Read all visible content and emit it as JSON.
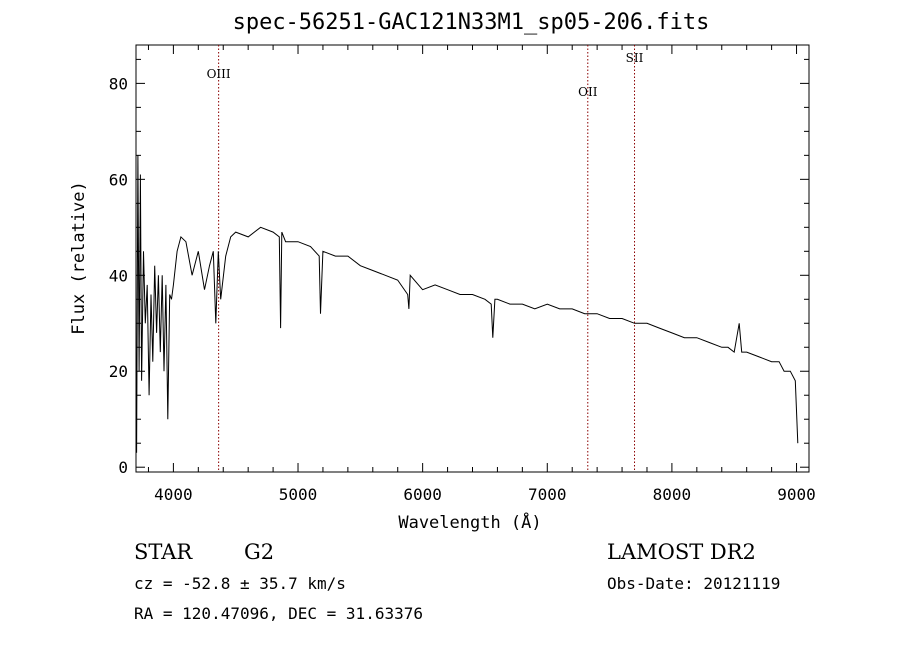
{
  "chart_data": {
    "type": "line",
    "title": "spec-56251-GAC121N33M1_sp05-206.fits",
    "xlabel": "Wavelength (Å)",
    "ylabel": "Flux (relative)",
    "xlim": [
      3700,
      9100
    ],
    "ylim": [
      -1,
      88
    ],
    "xticks": [
      4000,
      5000,
      6000,
      7000,
      8000,
      9000
    ],
    "yticks": [
      0,
      20,
      40,
      60,
      80
    ],
    "grid": false,
    "series": [
      {
        "x": [
          3705,
          3715,
          3725,
          3735,
          3745,
          3760,
          3775,
          3790,
          3805,
          3820,
          3835,
          3850,
          3865,
          3880,
          3895,
          3910,
          3925,
          3940,
          3955,
          3970,
          3985,
          4000,
          4030,
          4060,
          4100,
          4150,
          4200,
          4250,
          4290,
          4320,
          4340,
          4360,
          4380,
          4420,
          4460,
          4500,
          4600,
          4700,
          4800,
          4850,
          4860,
          4870,
          4900,
          5000,
          5100,
          5170,
          5180,
          5200,
          5300,
          5400,
          5500,
          5600,
          5700,
          5800,
          5880,
          5890,
          5900,
          6000,
          6100,
          6200,
          6300,
          6400,
          6500,
          6550,
          6563,
          6580,
          6600,
          6700,
          6800,
          6900,
          7000,
          7100,
          7200,
          7300,
          7400,
          7500,
          7600,
          7700,
          7800,
          7900,
          8000,
          8100,
          8200,
          8300,
          8400,
          8450,
          8500,
          8540,
          8560,
          8600,
          8700,
          8800,
          8840,
          8860,
          8900,
          8950,
          8990,
          9010
        ],
        "values": [
          3,
          65,
          20,
          61,
          18,
          45,
          30,
          38,
          15,
          36,
          22,
          42,
          28,
          40,
          24,
          40,
          20,
          38,
          10,
          36,
          35,
          38,
          45,
          48,
          47,
          40,
          45,
          37,
          42,
          45,
          30,
          45,
          35,
          44,
          48,
          49,
          48,
          50,
          49,
          48,
          29,
          49,
          47,
          47,
          46,
          44,
          32,
          45,
          44,
          44,
          42,
          41,
          40,
          39,
          36,
          33,
          40,
          37,
          38,
          37,
          36,
          36,
          35,
          34,
          27,
          35,
          35,
          34,
          34,
          33,
          34,
          33,
          33,
          32,
          32,
          31,
          31,
          30,
          30,
          29,
          28,
          27,
          27,
          26,
          25,
          25,
          24,
          30,
          24,
          24,
          23,
          22,
          22,
          22,
          20,
          20,
          18,
          5
        ]
      }
    ],
    "lines": [
      {
        "label": "OIII",
        "x": 4363
      },
      {
        "label": "OII",
        "x": 7325
      },
      {
        "label": "SII",
        "x": 7700
      }
    ],
    "line_color": "#8b0000"
  },
  "footer": {
    "class": "STAR",
    "subclass": "G2",
    "survey": "LAMOST DR2",
    "cz": "cz = -52.8 ± 35.7 km/s",
    "obs_date": "Obs-Date: 20121119",
    "radec": "RA = 120.47096, DEC =  31.63376"
  }
}
